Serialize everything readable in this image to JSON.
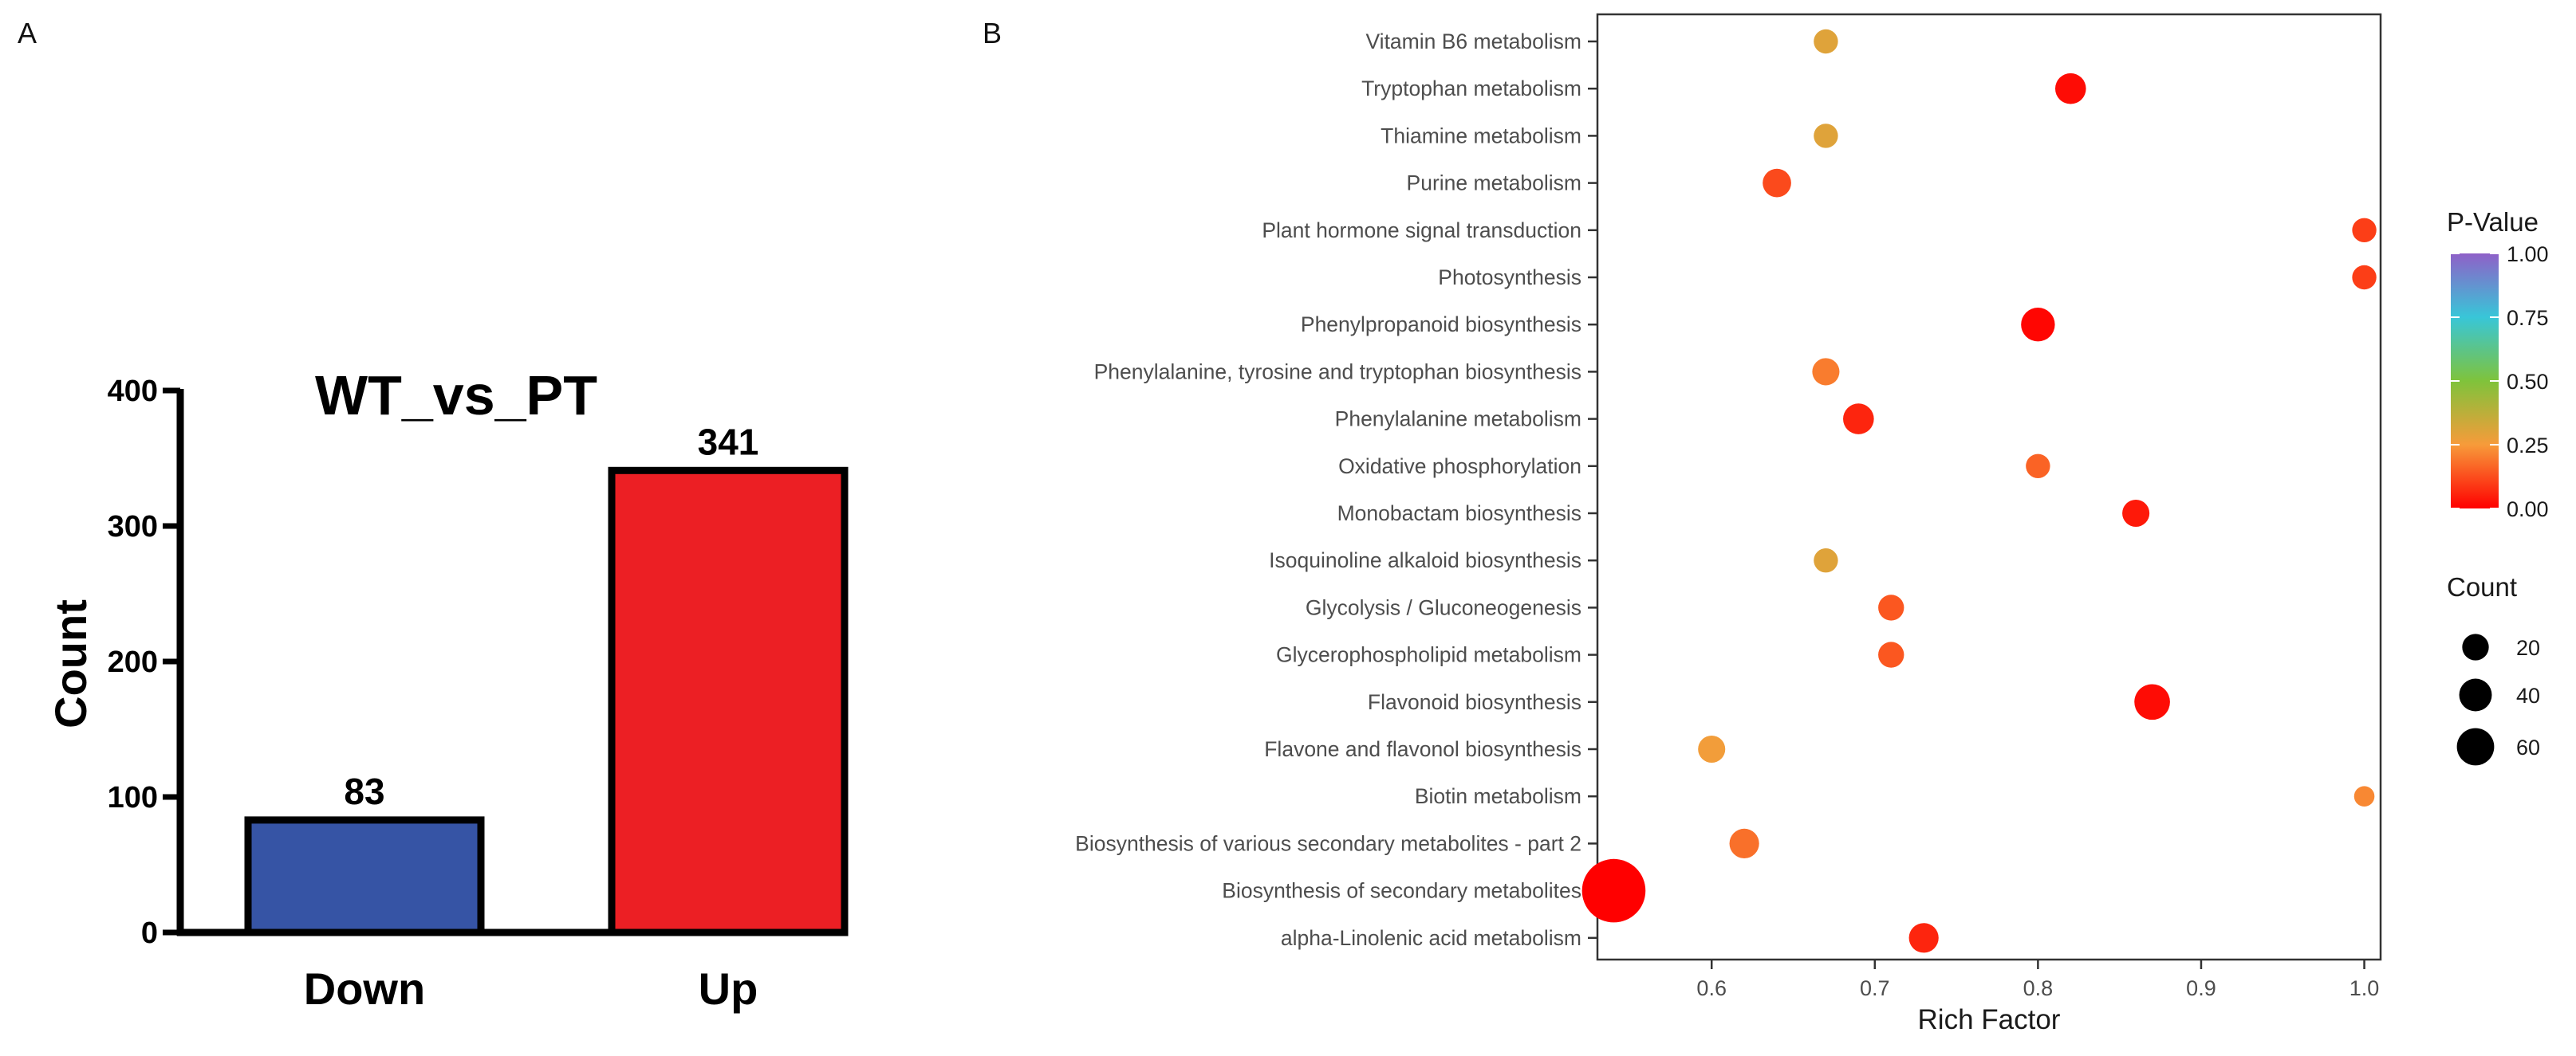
{
  "panels": {
    "a_label": "A",
    "b_label": "B"
  },
  "chart_data": [
    {
      "type": "bar",
      "title": "WT_vs_PT",
      "xlabel": "",
      "ylabel": "Count",
      "categories": [
        "Down",
        "Up"
      ],
      "values": [
        83,
        341
      ],
      "data_labels": [
        "83",
        "341"
      ],
      "colors": [
        "#3654a5",
        "#ec1f24"
      ],
      "ylim": [
        0,
        400
      ],
      "yticks": [
        0,
        100,
        200,
        300,
        400
      ],
      "ytick_labels": [
        "0",
        "100",
        "200",
        "300",
        "400"
      ],
      "grid": false
    },
    {
      "type": "scatter",
      "title": "",
      "xlabel": "Rich Factor",
      "ylabel": "",
      "xlim": [
        0.53,
        1.01
      ],
      "xticks": [
        0.6,
        0.7,
        0.8,
        0.9,
        1.0
      ],
      "xtick_labels": [
        "0.6",
        "0.7",
        "0.8",
        "0.9",
        "1.0"
      ],
      "categories": [
        "Vitamin B6 metabolism",
        "Tryptophan metabolism",
        "Thiamine metabolism",
        "Purine metabolism",
        "Plant hormone signal transduction",
        "Photosynthesis",
        "Phenylpropanoid biosynthesis",
        "Phenylalanine, tyrosine and tryptophan biosynthesis",
        "Phenylalanine metabolism",
        "Oxidative phosphorylation",
        "Monobactam biosynthesis",
        "Isoquinoline alkaloid biosynthesis",
        "Glycolysis / Gluconeogenesis",
        "Glycerophospholipid metabolism",
        "Flavonoid biosynthesis",
        "Flavone and flavonol biosynthesis",
        "Biotin metabolism",
        "Biosynthesis of various secondary metabolites - part 2",
        "Biosynthesis of secondary metabolites",
        "alpha-Linolenic acid metabolism"
      ],
      "rich_factor": [
        0.67,
        0.82,
        0.67,
        0.64,
        1.0,
        1.0,
        0.8,
        0.67,
        0.69,
        0.8,
        0.86,
        0.67,
        0.71,
        0.71,
        0.87,
        0.6,
        1.0,
        0.62,
        0.54,
        0.73
      ],
      "count": [
        4,
        9,
        4,
        7,
        4,
        4,
        12,
        6,
        9,
        4,
        6,
        4,
        5,
        5,
        14,
        6,
        2,
        8,
        64,
        8
      ],
      "p_value": [
        0.3,
        0.02,
        0.3,
        0.12,
        0.1,
        0.1,
        0.01,
        0.2,
        0.06,
        0.16,
        0.04,
        0.3,
        0.14,
        0.14,
        0.02,
        0.26,
        0.22,
        0.18,
        0.0,
        0.06
      ],
      "color_legend": {
        "title": "P-Value",
        "ticks": [
          1.0,
          0.75,
          0.5,
          0.25,
          0.0
        ],
        "tick_labels": [
          "1.00",
          "0.75",
          "0.50",
          "0.25",
          "0.00"
        ],
        "colors": [
          "#ff0000",
          "#f79b3a",
          "#7fc33b",
          "#38c6d8",
          "#8f60c8"
        ]
      },
      "size_legend": {
        "title": "Count",
        "values": [
          20,
          40,
          60
        ],
        "labels": [
          "20",
          "40",
          "60"
        ]
      },
      "grid": false,
      "legend_position": "right"
    }
  ]
}
